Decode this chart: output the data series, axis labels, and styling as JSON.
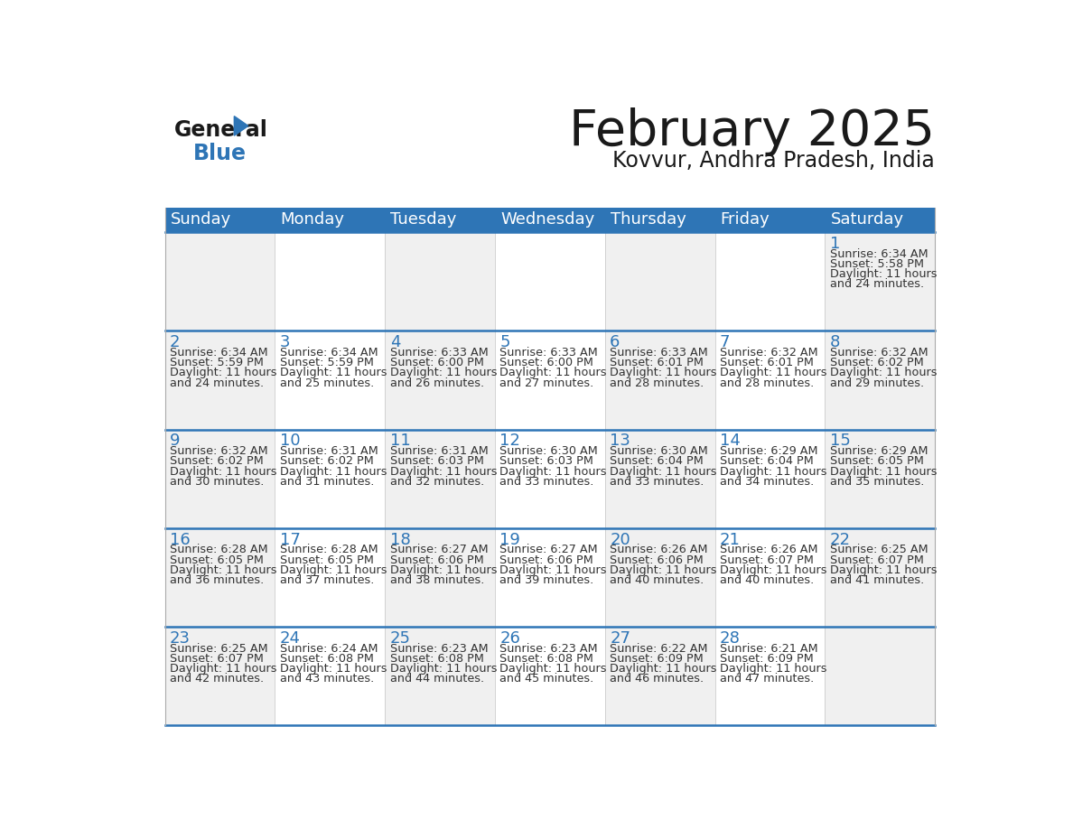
{
  "title": "February 2025",
  "subtitle": "Kovvur, Andhra Pradesh, India",
  "header_color": "#2e75b6",
  "header_text_color": "#ffffff",
  "cell_bg_even": "#f0f0f0",
  "cell_bg_odd": "#ffffff",
  "day_number_color": "#2e75b6",
  "text_color": "#333333",
  "line_color": "#2e75b6",
  "border_color": "#aaaaaa",
  "days_of_week": [
    "Sunday",
    "Monday",
    "Tuesday",
    "Wednesday",
    "Thursday",
    "Friday",
    "Saturday"
  ],
  "weeks": [
    [
      {
        "day": null,
        "sunrise": null,
        "sunset": null,
        "daylight_min": null
      },
      {
        "day": null,
        "sunrise": null,
        "sunset": null,
        "daylight_min": null
      },
      {
        "day": null,
        "sunrise": null,
        "sunset": null,
        "daylight_min": null
      },
      {
        "day": null,
        "sunrise": null,
        "sunset": null,
        "daylight_min": null
      },
      {
        "day": null,
        "sunrise": null,
        "sunset": null,
        "daylight_min": null
      },
      {
        "day": null,
        "sunrise": null,
        "sunset": null,
        "daylight_min": null
      },
      {
        "day": 1,
        "sunrise": "6:34 AM",
        "sunset": "5:58 PM",
        "daylight_min": "24"
      }
    ],
    [
      {
        "day": 2,
        "sunrise": "6:34 AM",
        "sunset": "5:59 PM",
        "daylight_min": "24"
      },
      {
        "day": 3,
        "sunrise": "6:34 AM",
        "sunset": "5:59 PM",
        "daylight_min": "25"
      },
      {
        "day": 4,
        "sunrise": "6:33 AM",
        "sunset": "6:00 PM",
        "daylight_min": "26"
      },
      {
        "day": 5,
        "sunrise": "6:33 AM",
        "sunset": "6:00 PM",
        "daylight_min": "27"
      },
      {
        "day": 6,
        "sunrise": "6:33 AM",
        "sunset": "6:01 PM",
        "daylight_min": "28"
      },
      {
        "day": 7,
        "sunrise": "6:32 AM",
        "sunset": "6:01 PM",
        "daylight_min": "28"
      },
      {
        "day": 8,
        "sunrise": "6:32 AM",
        "sunset": "6:02 PM",
        "daylight_min": "29"
      }
    ],
    [
      {
        "day": 9,
        "sunrise": "6:32 AM",
        "sunset": "6:02 PM",
        "daylight_min": "30"
      },
      {
        "day": 10,
        "sunrise": "6:31 AM",
        "sunset": "6:02 PM",
        "daylight_min": "31"
      },
      {
        "day": 11,
        "sunrise": "6:31 AM",
        "sunset": "6:03 PM",
        "daylight_min": "32"
      },
      {
        "day": 12,
        "sunrise": "6:30 AM",
        "sunset": "6:03 PM",
        "daylight_min": "33"
      },
      {
        "day": 13,
        "sunrise": "6:30 AM",
        "sunset": "6:04 PM",
        "daylight_min": "33"
      },
      {
        "day": 14,
        "sunrise": "6:29 AM",
        "sunset": "6:04 PM",
        "daylight_min": "34"
      },
      {
        "day": 15,
        "sunrise": "6:29 AM",
        "sunset": "6:05 PM",
        "daylight_min": "35"
      }
    ],
    [
      {
        "day": 16,
        "sunrise": "6:28 AM",
        "sunset": "6:05 PM",
        "daylight_min": "36"
      },
      {
        "day": 17,
        "sunrise": "6:28 AM",
        "sunset": "6:05 PM",
        "daylight_min": "37"
      },
      {
        "day": 18,
        "sunrise": "6:27 AM",
        "sunset": "6:06 PM",
        "daylight_min": "38"
      },
      {
        "day": 19,
        "sunrise": "6:27 AM",
        "sunset": "6:06 PM",
        "daylight_min": "39"
      },
      {
        "day": 20,
        "sunrise": "6:26 AM",
        "sunset": "6:06 PM",
        "daylight_min": "40"
      },
      {
        "day": 21,
        "sunrise": "6:26 AM",
        "sunset": "6:07 PM",
        "daylight_min": "40"
      },
      {
        "day": 22,
        "sunrise": "6:25 AM",
        "sunset": "6:07 PM",
        "daylight_min": "41"
      }
    ],
    [
      {
        "day": 23,
        "sunrise": "6:25 AM",
        "sunset": "6:07 PM",
        "daylight_min": "42"
      },
      {
        "day": 24,
        "sunrise": "6:24 AM",
        "sunset": "6:08 PM",
        "daylight_min": "43"
      },
      {
        "day": 25,
        "sunrise": "6:23 AM",
        "sunset": "6:08 PM",
        "daylight_min": "44"
      },
      {
        "day": 26,
        "sunrise": "6:23 AM",
        "sunset": "6:08 PM",
        "daylight_min": "45"
      },
      {
        "day": 27,
        "sunrise": "6:22 AM",
        "sunset": "6:09 PM",
        "daylight_min": "46"
      },
      {
        "day": 28,
        "sunrise": "6:21 AM",
        "sunset": "6:09 PM",
        "daylight_min": "47"
      },
      {
        "day": null,
        "sunrise": null,
        "sunset": null,
        "daylight_min": null
      }
    ]
  ],
  "logo_general_color": "#1a1a1a",
  "logo_blue_color": "#2e75b6",
  "logo_triangle_color": "#2e75b6"
}
